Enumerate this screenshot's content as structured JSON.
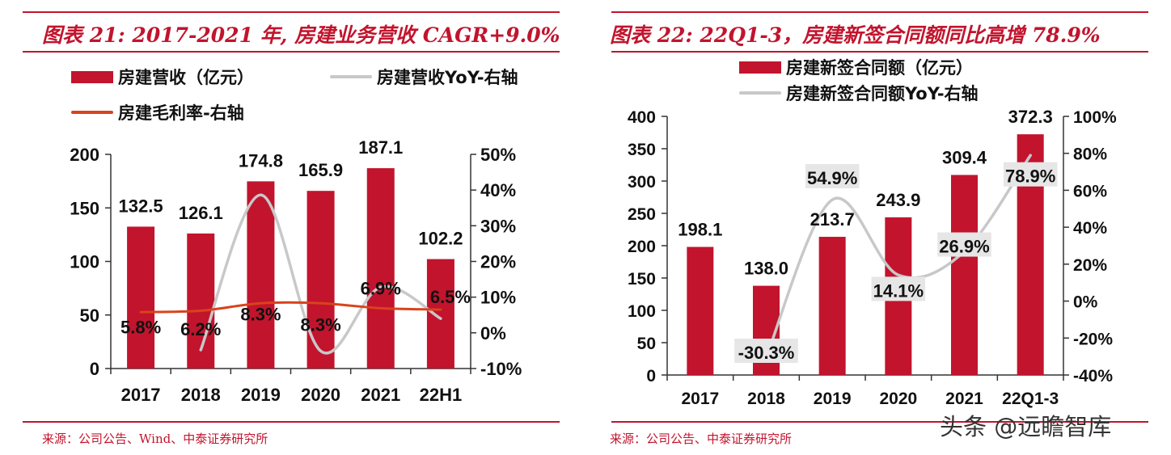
{
  "left": {
    "title": "图表 21: 2017-2021 年, 房建业务营收 CAGR+9.0%",
    "source": "来源：公司公告、Wind、中泰证券研究所",
    "legend": {
      "bar": "房建营收（亿元）",
      "yoy": "房建营收YoY-右轴",
      "margin": "房建毛利率-右轴"
    }
  },
  "right": {
    "title": "图表 22: 22Q1-3，房建新签合同额同比高增 78.9%",
    "source": "来源：公司公告、中泰证券研究所",
    "legend": {
      "bar": "房建新签合同额（亿元）",
      "yoy": "房建新签合同额YoY-右轴"
    }
  },
  "watermark": "头条 @远瞻智库",
  "colors": {
    "bar": "#c2142d",
    "yoy": "#c8c8c8",
    "margin": "#d9431c",
    "accent": "#c2142d"
  },
  "chart_data": [
    {
      "type": "bar",
      "title": "图表 21: 2017-2021 年, 房建业务营收 CAGR+9.0%",
      "categories": [
        "2017",
        "2018",
        "2019",
        "2020",
        "2021",
        "22H1"
      ],
      "series": [
        {
          "name": "房建营收（亿元）",
          "type": "bar",
          "axis": "left",
          "values": [
            132.5,
            126.1,
            174.8,
            165.9,
            187.1,
            102.2
          ]
        },
        {
          "name": "房建营收YoY-右轴",
          "type": "line",
          "axis": "right",
          "unit": "%",
          "values": [
            null,
            -4.8,
            38.6,
            -5.1,
            12.8,
            4
          ]
        },
        {
          "name": "房建毛利率-右轴",
          "type": "line",
          "axis": "right",
          "unit": "%",
          "values": [
            5.8,
            6.2,
            8.3,
            8.3,
            6.9,
            6.5
          ]
        }
      ],
      "data_labels": {
        "bars": [
          "132.5",
          "126.1",
          "174.8",
          "165.9",
          "187.1",
          "102.2"
        ],
        "margin": [
          "5.8%",
          "6.2%",
          "8.3%",
          "8.3%",
          "6.9%",
          "6.5%"
        ]
      },
      "y_left": {
        "min": 0,
        "max": 200,
        "ticks": [
          "0",
          "50",
          "100",
          "150",
          "200"
        ]
      },
      "y_right": {
        "min": -10,
        "max": 50,
        "ticks": [
          "-10%",
          "0%",
          "10%",
          "20%",
          "30%",
          "40%",
          "50%"
        ]
      },
      "grid": false,
      "legend_position": "top"
    },
    {
      "type": "bar",
      "title": "图表 22: 22Q1-3，房建新签合同额同比高增 78.9%",
      "categories": [
        "2017",
        "2018",
        "2019",
        "2020",
        "2021",
        "22Q1-3"
      ],
      "series": [
        {
          "name": "房建新签合同额（亿元）",
          "type": "bar",
          "axis": "left",
          "values": [
            198.1,
            138.0,
            213.7,
            243.9,
            309.4,
            372.3
          ]
        },
        {
          "name": "房建新签合同额YoY-右轴",
          "type": "line",
          "axis": "right",
          "unit": "%",
          "values": [
            null,
            -30.3,
            54.9,
            14.1,
            26.9,
            78.9
          ]
        }
      ],
      "data_labels": {
        "bars": [
          "198.1",
          "138.0",
          "213.7",
          "243.9",
          "309.4",
          "372.3"
        ],
        "yoy": [
          "-30.3%",
          "54.9%",
          "14.1%",
          "26.9%",
          "78.9%"
        ]
      },
      "y_left": {
        "min": 0,
        "max": 400,
        "ticks": [
          "0",
          "50",
          "100",
          "150",
          "200",
          "250",
          "300",
          "350",
          "400"
        ]
      },
      "y_right": {
        "min": -40,
        "max": 100,
        "ticks": [
          "-40%",
          "-20%",
          "0%",
          "20%",
          "40%",
          "60%",
          "80%",
          "100%"
        ]
      },
      "grid": false,
      "legend_position": "top"
    }
  ]
}
